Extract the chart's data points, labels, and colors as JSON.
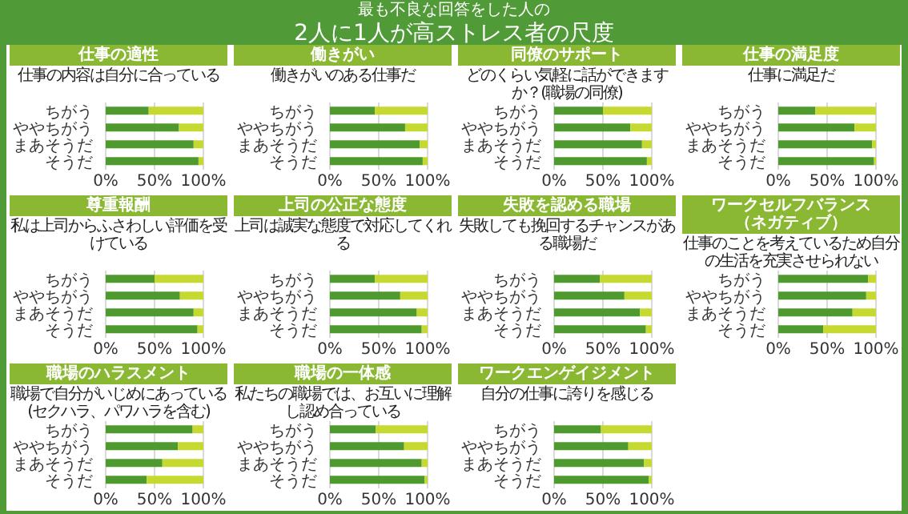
{
  "chart_data": [
    {
      "type": "other",
      "title": "2人に1人が高ストレス者の尺度",
      "subtitle": "最も不良な回答をした人の"
    },
    {
      "type": "bar",
      "orientation": "horizontal",
      "stacked": true,
      "grid": "x",
      "title": "仕事の適性",
      "subtitle": "仕事の内容は自分に合っている",
      "categories": [
        "ちがう",
        "ややちがう",
        "まあそうだ",
        "そうだ"
      ],
      "xlim": [
        0,
        100
      ],
      "xticks": [
        {
          "value": 0,
          "label": "0%"
        },
        {
          "value": 50,
          "label": "50%"
        },
        {
          "value": 100,
          "label": "100%"
        }
      ],
      "series": [
        {
          "color": "#4e9a2e",
          "values": [
            44,
            75,
            90,
            95
          ]
        },
        {
          "color": "#c6d931",
          "values": [
            56,
            25,
            10,
            5
          ]
        }
      ]
    },
    {
      "type": "bar",
      "orientation": "horizontal",
      "stacked": true,
      "grid": "x",
      "title": "働きがい",
      "subtitle": "働きがいのある仕事だ",
      "categories": [
        "ちがう",
        "ややちがう",
        "まあそうだ",
        "そうだ"
      ],
      "xlim": [
        0,
        100
      ],
      "xticks": [
        {
          "value": 0,
          "label": "0%"
        },
        {
          "value": 50,
          "label": "50%"
        },
        {
          "value": 100,
          "label": "100%"
        }
      ],
      "series": [
        {
          "color": "#4e9a2e",
          "values": [
            46,
            77,
            92,
            95
          ]
        },
        {
          "color": "#c6d931",
          "values": [
            54,
            23,
            8,
            5
          ]
        }
      ]
    },
    {
      "type": "bar",
      "orientation": "horizontal",
      "stacked": true,
      "grid": "x",
      "title": "同僚のサポート",
      "subtitle": "どのくらい気軽に話ができますか？(職場の同僚)",
      "categories": [
        "ちがう",
        "ややちがう",
        "まあそうだ",
        "そうだ"
      ],
      "xlim": [
        0,
        100
      ],
      "xticks": [
        {
          "value": 0,
          "label": "0%"
        },
        {
          "value": 50,
          "label": "50%"
        },
        {
          "value": 100,
          "label": "100%"
        }
      ],
      "series": [
        {
          "color": "#4e9a2e",
          "values": [
            50,
            78,
            90,
            95
          ]
        },
        {
          "color": "#c6d931",
          "values": [
            50,
            22,
            10,
            5
          ]
        }
      ]
    },
    {
      "type": "bar",
      "orientation": "horizontal",
      "stacked": true,
      "grid": "x",
      "title": "仕事の満足度",
      "subtitle": "仕事に満足だ",
      "categories": [
        "ちがう",
        "ややちがう",
        "まあそうだ",
        "そうだ"
      ],
      "xlim": [
        0,
        100
      ],
      "xticks": [
        {
          "value": 0,
          "label": "0%"
        },
        {
          "value": 50,
          "label": "50%"
        },
        {
          "value": 100,
          "label": "100%"
        }
      ],
      "series": [
        {
          "color": "#4e9a2e",
          "values": [
            38,
            78,
            96,
            98
          ]
        },
        {
          "color": "#c6d931",
          "values": [
            62,
            22,
            4,
            2
          ]
        }
      ]
    },
    {
      "type": "bar",
      "orientation": "horizontal",
      "stacked": true,
      "grid": "x",
      "title": "尊重報酬",
      "subtitle": "私は上司からふさわしい評価を受けている",
      "categories": [
        "ちがう",
        "ややちがう",
        "まあそうだ",
        "そうだ"
      ],
      "xlim": [
        0,
        100
      ],
      "xticks": [
        {
          "value": 0,
          "label": "0%"
        },
        {
          "value": 50,
          "label": "50%"
        },
        {
          "value": 100,
          "label": "100%"
        }
      ],
      "series": [
        {
          "color": "#4e9a2e",
          "values": [
            50,
            76,
            90,
            94
          ]
        },
        {
          "color": "#c6d931",
          "values": [
            50,
            24,
            10,
            6
          ]
        }
      ]
    },
    {
      "type": "bar",
      "orientation": "horizontal",
      "stacked": true,
      "grid": "x",
      "title": "上司の公正な態度",
      "subtitle": "上司は誠実な態度で対応してくれる",
      "categories": [
        "ちがう",
        "ややちがう",
        "まあそうだ",
        "そうだ"
      ],
      "xlim": [
        0,
        100
      ],
      "xticks": [
        {
          "value": 0,
          "label": "0%"
        },
        {
          "value": 50,
          "label": "50%"
        },
        {
          "value": 100,
          "label": "100%"
        }
      ],
      "series": [
        {
          "color": "#4e9a2e",
          "values": [
            46,
            72,
            89,
            94
          ]
        },
        {
          "color": "#c6d931",
          "values": [
            54,
            28,
            11,
            6
          ]
        }
      ]
    },
    {
      "type": "bar",
      "orientation": "horizontal",
      "stacked": true,
      "grid": "x",
      "title": "失敗を認める職場",
      "subtitle": "失敗しても挽回するチャンスがある職場だ",
      "categories": [
        "ちがう",
        "ややちがう",
        "まあそうだ",
        "そうだ"
      ],
      "xlim": [
        0,
        100
      ],
      "xticks": [
        {
          "value": 0,
          "label": "0%"
        },
        {
          "value": 50,
          "label": "50%"
        },
        {
          "value": 100,
          "label": "100%"
        }
      ],
      "series": [
        {
          "color": "#4e9a2e",
          "values": [
            47,
            72,
            88,
            94
          ]
        },
        {
          "color": "#c6d931",
          "values": [
            53,
            28,
            12,
            6
          ]
        }
      ]
    },
    {
      "type": "bar",
      "orientation": "horizontal",
      "stacked": true,
      "grid": "x",
      "title": "ワークセルフバランス（ネガティブ）",
      "subtitle": "仕事のことを考えているため自分の生活を充実させられない",
      "categories": [
        "ちがう",
        "ややちがう",
        "まあそうだ",
        "そうだ"
      ],
      "xlim": [
        0,
        100
      ],
      "xticks": [
        {
          "value": 0,
          "label": "0%"
        },
        {
          "value": 50,
          "label": "50%"
        },
        {
          "value": 100,
          "label": "100%"
        }
      ],
      "series": [
        {
          "color": "#4e9a2e",
          "values": [
            92,
            90,
            76,
            46
          ]
        },
        {
          "color": "#c6d931",
          "values": [
            8,
            10,
            24,
            54
          ]
        }
      ]
    },
    {
      "type": "bar",
      "orientation": "horizontal",
      "stacked": true,
      "grid": "x",
      "title": "職場のハラスメント",
      "subtitle": "職場で自分がいじめにあっている(セクハラ、パワハラを含む)",
      "categories": [
        "ちがう",
        "ややちがう",
        "まあそうだ",
        "そうだ"
      ],
      "xlim": [
        0,
        100
      ],
      "xticks": [
        {
          "value": 0,
          "label": "0%"
        },
        {
          "value": 50,
          "label": "50%"
        },
        {
          "value": 100,
          "label": "100%"
        }
      ],
      "series": [
        {
          "color": "#4e9a2e",
          "values": [
            89,
            74,
            58,
            42
          ]
        },
        {
          "color": "#c6d931",
          "values": [
            11,
            26,
            42,
            58
          ]
        }
      ]
    },
    {
      "type": "bar",
      "orientation": "horizontal",
      "stacked": true,
      "grid": "x",
      "title": "職場の一体感",
      "subtitle": "私たちの職場では、お互いに理解し認め合っている",
      "categories": [
        "ちがう",
        "ややちがう",
        "まあそうだ",
        "そうだ"
      ],
      "xlim": [
        0,
        100
      ],
      "xticks": [
        {
          "value": 0,
          "label": "0%"
        },
        {
          "value": 50,
          "label": "50%"
        },
        {
          "value": 100,
          "label": "100%"
        }
      ],
      "series": [
        {
          "color": "#4e9a2e",
          "values": [
            47,
            76,
            94,
            97
          ]
        },
        {
          "color": "#c6d931",
          "values": [
            53,
            24,
            6,
            3
          ]
        }
      ]
    },
    {
      "type": "bar",
      "orientation": "horizontal",
      "stacked": true,
      "grid": "x",
      "title": "ワークエンゲイジメント",
      "subtitle": "自分の仕事に誇りを感じる",
      "categories": [
        "ちがう",
        "ややちがう",
        "まあそうだ",
        "そうだ"
      ],
      "xlim": [
        0,
        100
      ],
      "xticks": [
        {
          "value": 0,
          "label": "0%"
        },
        {
          "value": 50,
          "label": "50%"
        },
        {
          "value": 100,
          "label": "100%"
        }
      ],
      "series": [
        {
          "color": "#4e9a2e",
          "values": [
            48,
            76,
            92,
            97
          ]
        },
        {
          "color": "#c6d931",
          "values": [
            52,
            24,
            8,
            3
          ]
        }
      ]
    }
  ]
}
